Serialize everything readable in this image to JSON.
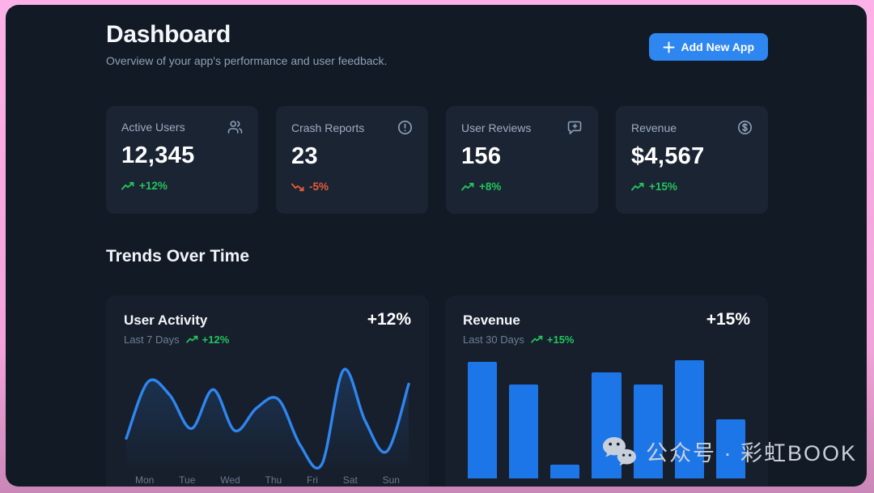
{
  "page": {
    "title": "Dashboard",
    "subtitle": "Overview of your app's performance and user feedback.",
    "add_button": {
      "label": "Add New App",
      "icon": "plus-icon"
    },
    "section_title": "Trends Over Time"
  },
  "colors": {
    "frame_pink": "#fcb2e8",
    "panel_bg": "#121a25",
    "card_bg": "#1b2433",
    "accent_blue": "#2e86f0",
    "bar_blue": "#1d76e8",
    "positive_green": "#22c55e",
    "negative_red": "#e65c38"
  },
  "stats": [
    {
      "label": "Active Users",
      "icon": "users-icon",
      "value": "12,345",
      "trend": "+12%",
      "direction": "up"
    },
    {
      "label": "Crash Reports",
      "icon": "alert-circle-icon",
      "value": "23",
      "trend": "-5%",
      "direction": "down"
    },
    {
      "label": "User Reviews",
      "icon": "message-plus-icon",
      "value": "156",
      "trend": "+8%",
      "direction": "up"
    },
    {
      "label": "Revenue",
      "icon": "dollar-circle-icon",
      "value": "$4,567",
      "trend": "+15%",
      "direction": "up"
    }
  ],
  "chart_data": [
    {
      "type": "line",
      "title": "User Activity",
      "subtitle": "Last 7 Days",
      "trend_label": "+12%",
      "big_value": "+12%",
      "x_labels": [
        "Mon",
        "Tue",
        "Wed",
        "Thu",
        "Fri",
        "Sat",
        "Sun"
      ],
      "values": [
        28,
        80,
        68,
        37,
        73,
        35,
        56,
        64,
        22,
        4,
        91,
        44,
        16,
        78
      ],
      "ylim": [
        0,
        100
      ],
      "grid": false,
      "legend": false,
      "line_color": "#2e86f0"
    },
    {
      "type": "bar",
      "title": "Revenue",
      "subtitle": "Last 30 Days",
      "trend_label": "+15%",
      "big_value": "+15%",
      "values": [
        95,
        76,
        11,
        86,
        76,
        96,
        48
      ],
      "ylim": [
        0,
        100
      ],
      "grid": false,
      "legend": false,
      "bar_color": "#1d76e8"
    }
  ],
  "watermark": {
    "icon": "wechat-icon",
    "text": "公众号 · 彩虹BOOK"
  }
}
